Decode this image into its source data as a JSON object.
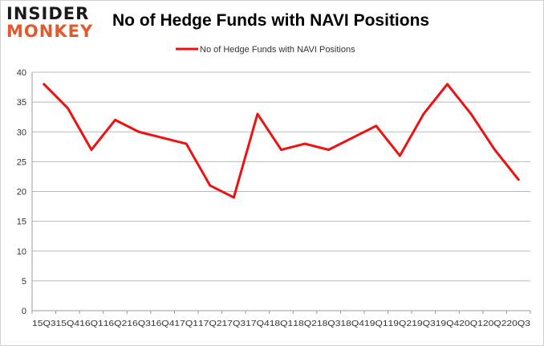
{
  "logo": {
    "line1": "INSIDER",
    "line2": "MONKEY"
  },
  "chart_data": {
    "type": "line",
    "title": "No of Hedge Funds with NAVI Positions",
    "xlabel": "",
    "ylabel": "",
    "categories": [
      "15Q3",
      "15Q4",
      "16Q1",
      "16Q2",
      "16Q3",
      "16Q4",
      "17Q1",
      "17Q2",
      "17Q3",
      "17Q4",
      "18Q1",
      "18Q2",
      "18Q3",
      "18Q4",
      "19Q1",
      "19Q2",
      "19Q3",
      "19Q4",
      "20Q1",
      "20Q2",
      "20Q3"
    ],
    "series": [
      {
        "name": "No of Hedge Funds with NAVI Positions",
        "values": [
          38,
          34,
          27,
          32,
          30,
          29,
          28,
          21,
          19,
          33,
          27,
          28,
          27,
          29,
          31,
          26,
          33,
          38,
          33,
          27,
          22
        ]
      }
    ],
    "ylim": [
      0,
      40
    ],
    "yticks": [
      0,
      5,
      10,
      15,
      20,
      25,
      30,
      35,
      40
    ],
    "grid": "horizontal",
    "legend": "top-center",
    "line_color": "#ee1111"
  }
}
